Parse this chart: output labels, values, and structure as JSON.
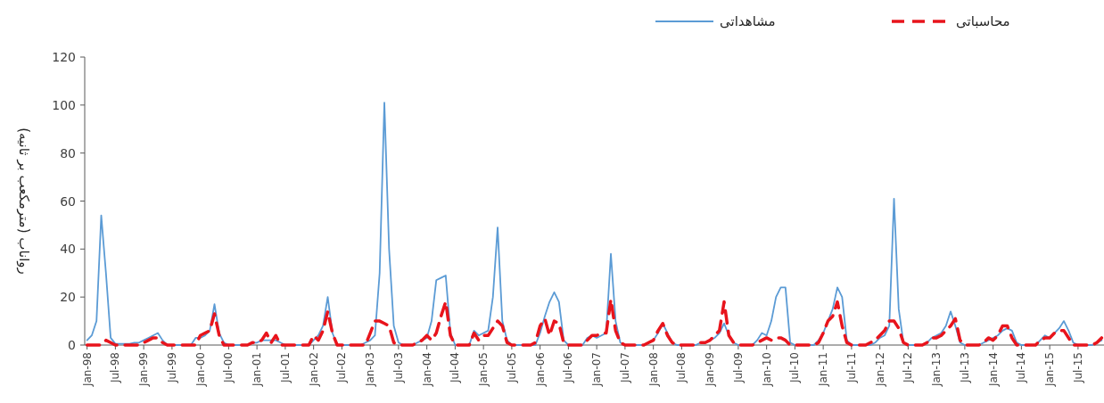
{
  "chart_data": {
    "type": "line",
    "ylabel": "رواناب (مترمکعب بر ثانیه)",
    "ylim": [
      0,
      120
    ],
    "yticks": [
      0,
      20,
      40,
      60,
      80,
      100,
      120
    ],
    "grid": false,
    "legend": "top",
    "categories": [
      "Jan-98",
      null,
      null,
      null,
      null,
      null,
      "Jul-98",
      null,
      null,
      null,
      null,
      null,
      "Jan-99",
      null,
      null,
      null,
      null,
      null,
      "Jul-99",
      null,
      null,
      null,
      null,
      null,
      "Jan-00",
      null,
      null,
      null,
      null,
      null,
      "Jul-00",
      null,
      null,
      null,
      null,
      null,
      "Jan-01",
      null,
      null,
      null,
      null,
      null,
      "Jul-01",
      null,
      null,
      null,
      null,
      null,
      "Jan-02",
      null,
      null,
      null,
      null,
      null,
      "Jul-02",
      null,
      null,
      null,
      null,
      null,
      "Jan-03",
      null,
      null,
      null,
      null,
      null,
      "Jul-03",
      null,
      null,
      null,
      null,
      null,
      "Jan-04",
      null,
      null,
      null,
      null,
      null,
      "Jul-04",
      null,
      null,
      null,
      null,
      null,
      "Jan-05",
      null,
      null,
      null,
      null,
      null,
      "Jul-05",
      null,
      null,
      null,
      null,
      null,
      "Jan-06",
      null,
      null,
      null,
      null,
      null,
      "Jul-06",
      null,
      null,
      null,
      null,
      null,
      "Jan-07",
      null,
      null,
      null,
      null,
      null,
      "Jul-07",
      null,
      null,
      null,
      null,
      null,
      "Jan-08",
      null,
      null,
      null,
      null,
      null,
      "Jul-08",
      null,
      null,
      null,
      null,
      null,
      "Jan-09",
      null,
      null,
      null,
      null,
      null,
      "Jul-09",
      null,
      null,
      null,
      null,
      null,
      "Jan-10",
      null,
      null,
      null,
      null,
      null,
      "Jul-10",
      null,
      null,
      null,
      null,
      null,
      "Jan-11",
      null,
      null,
      null,
      null,
      null,
      "Jul-11",
      null,
      null,
      null,
      null,
      null,
      "Jan-12",
      null,
      null,
      null,
      null,
      null,
      "Jul-12",
      null,
      null,
      null,
      null,
      null,
      "Jan-13",
      null,
      null,
      null,
      null,
      null,
      "Jul-13",
      null,
      null,
      null,
      null,
      null,
      "Jan-14",
      null,
      null,
      null,
      null,
      null,
      "Jul-14",
      null,
      null,
      null,
      null,
      null,
      "Jan-15",
      null,
      null,
      null,
      null,
      null,
      "Jul-15",
      null,
      null,
      null,
      null,
      null
    ],
    "series": [
      {
        "name": "مشاهداتی",
        "color": "#5b9bd5",
        "line_style": "solid",
        "values": [
          2,
          4,
          10,
          54,
          30,
          3,
          0.5,
          0.5,
          0.5,
          0.5,
          1,
          1,
          2,
          3,
          4,
          5,
          2,
          0,
          0,
          0,
          0,
          0,
          0,
          3,
          3,
          4,
          6,
          17,
          5,
          1,
          0,
          0,
          0,
          0,
          0,
          1,
          1,
          2,
          2,
          2,
          2,
          1,
          0,
          0,
          0,
          0,
          0,
          0,
          2,
          4,
          8,
          20,
          5,
          0,
          0,
          0,
          0,
          0,
          0,
          1,
          2,
          4,
          30,
          101,
          40,
          8,
          1,
          0,
          0,
          0,
          1,
          2,
          3,
          10,
          27,
          28,
          29,
          5,
          0,
          0,
          0,
          0,
          6,
          4,
          5,
          6,
          20,
          49,
          10,
          2,
          0,
          0,
          0,
          0,
          0,
          0,
          5,
          12,
          18,
          22,
          18,
          2,
          0,
          0,
          0,
          0,
          3,
          4,
          3,
          4,
          5,
          38,
          10,
          1,
          0,
          0,
          0,
          0,
          0,
          1,
          2,
          5,
          9,
          5,
          1,
          0,
          0,
          0,
          0,
          0,
          1,
          1,
          2,
          3,
          5,
          9,
          4,
          1,
          0,
          0,
          0,
          0,
          2,
          5,
          4,
          10,
          20,
          24,
          24,
          1,
          0,
          0,
          0,
          0,
          0,
          2,
          5,
          10,
          15,
          24,
          20,
          2,
          0,
          0,
          0,
          0,
          0,
          1,
          3,
          4,
          8,
          61,
          15,
          1,
          0,
          0,
          0,
          0,
          1,
          3,
          4,
          5,
          8,
          14,
          8,
          1,
          0,
          0,
          0,
          0,
          1,
          2,
          3,
          4,
          6,
          7,
          6,
          1,
          0,
          0,
          0,
          0,
          2,
          4,
          3,
          5,
          7,
          10,
          6,
          1,
          0,
          0,
          0,
          0,
          1,
          2
        ]
      },
      {
        "name": "محاسباتی",
        "color": "#e8141c",
        "line_style": "dashed",
        "values": [
          0,
          0,
          0,
          0,
          2,
          1,
          0,
          0,
          0,
          0,
          0,
          0,
          1,
          2,
          3,
          3,
          1,
          0,
          0,
          0,
          0,
          0,
          0,
          0,
          4,
          5,
          6,
          13,
          4,
          0,
          0,
          0,
          0,
          0,
          0,
          1,
          1,
          2,
          5,
          1,
          4,
          0,
          0,
          0,
          0,
          0,
          0,
          0,
          4,
          2,
          6,
          14,
          5,
          0,
          0,
          0,
          0,
          0,
          0,
          0,
          5,
          10,
          10,
          9,
          8,
          1,
          0,
          0,
          0,
          0,
          1,
          2,
          4,
          2,
          5,
          12,
          18,
          4,
          0,
          0,
          0,
          0,
          5,
          2,
          4,
          4,
          7,
          10,
          8,
          1,
          0,
          0,
          0,
          0,
          0,
          1,
          8,
          11,
          4,
          10,
          9,
          1,
          0,
          0,
          0,
          0,
          2,
          4,
          4,
          5,
          5,
          19,
          6,
          1,
          0,
          0,
          0,
          0,
          0,
          1,
          2,
          6,
          9,
          4,
          1,
          0,
          0,
          0,
          0,
          0,
          1,
          1,
          2,
          4,
          6,
          18,
          4,
          1,
          0,
          0,
          0,
          0,
          1,
          2,
          3,
          2,
          3,
          3,
          2,
          0,
          0,
          0,
          0,
          0,
          0,
          1,
          5,
          10,
          12,
          18,
          8,
          1,
          0,
          0,
          0,
          0,
          1,
          2,
          4,
          6,
          10,
          10,
          7,
          1,
          0,
          0,
          0,
          0,
          1,
          3,
          3,
          4,
          6,
          8,
          11,
          2,
          0,
          0,
          0,
          0,
          1,
          3,
          2,
          4,
          8,
          8,
          3,
          0,
          0,
          0,
          0,
          0,
          2,
          3,
          3,
          5,
          6,
          6,
          3,
          0,
          0,
          0,
          0,
          0,
          1,
          3
        ]
      }
    ]
  }
}
